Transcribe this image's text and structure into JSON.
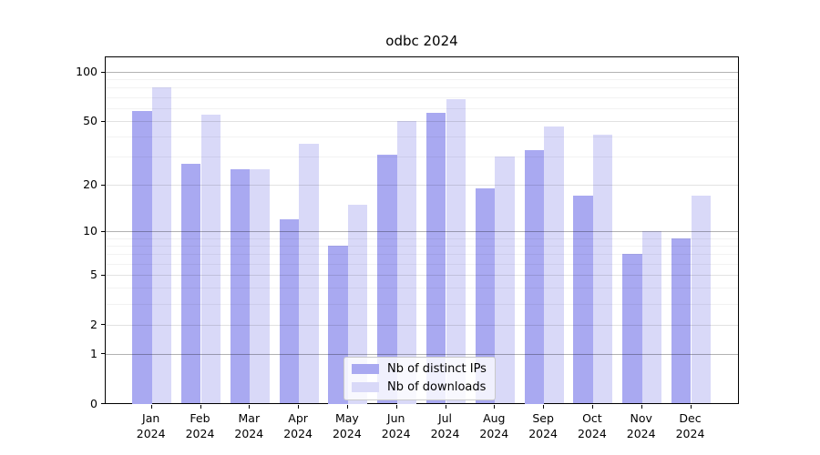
{
  "chart_data": {
    "type": "bar",
    "title": "odbc 2024",
    "categories": [
      "Jan",
      "Feb",
      "Mar",
      "Apr",
      "May",
      "Jun",
      "Jul",
      "Aug",
      "Sep",
      "Oct",
      "Nov",
      "Dec"
    ],
    "category_year": "2024",
    "series": [
      {
        "name": "Nb of distinct IPs",
        "color": "#a9a9f1",
        "values": [
          58,
          27,
          25,
          12,
          8,
          31,
          56,
          19,
          33,
          17,
          7,
          9
        ]
      },
      {
        "name": "Nb of downloads",
        "color": "#d9d9f8",
        "values": [
          80,
          55,
          25,
          36,
          15,
          50,
          68,
          30,
          46,
          41,
          10,
          17
        ]
      }
    ],
    "y_axis": {
      "scale": "log1p",
      "range": [
        0,
        100
      ],
      "tick_labels": [
        "0",
        "1",
        "2",
        "5",
        "10",
        "20",
        "50",
        "100"
      ],
      "ticks": [
        0,
        1,
        2,
        5,
        10,
        20,
        50,
        100
      ]
    },
    "grid": {
      "major": [
        1,
        10,
        100
      ],
      "mid": [
        2,
        5,
        20,
        50
      ],
      "minor": [
        3,
        4,
        6,
        7,
        8,
        9,
        30,
        40,
        60,
        70,
        80,
        90
      ]
    },
    "legend": {
      "position": "bottom-center"
    }
  }
}
